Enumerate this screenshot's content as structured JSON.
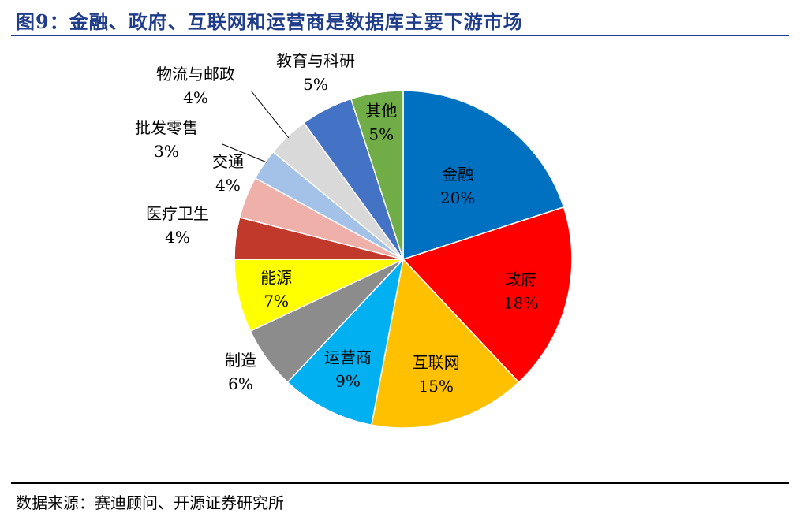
{
  "title": "图9：金融、政府、互联网和运营商是数据库主要下游市场",
  "source": "数据来源：赛迪顾问、开源证券研究所",
  "chart_data": {
    "type": "pie",
    "slices": [
      {
        "label": "金融",
        "value": 20,
        "value_label": "20%",
        "color": "#0070c0"
      },
      {
        "label": "政府",
        "value": 18,
        "value_label": "18%",
        "color": "#ff0000"
      },
      {
        "label": "互联网",
        "value": 15,
        "value_label": "15%",
        "color": "#ffc000"
      },
      {
        "label": "运营商",
        "value": 9,
        "value_label": "9%",
        "color": "#00b0f0"
      },
      {
        "label": "制造",
        "value": 6,
        "value_label": "6%",
        "color": "#8c8c8c"
      },
      {
        "label": "能源",
        "value": 7,
        "value_label": "7%",
        "color": "#ffff00"
      },
      {
        "label": "医疗卫生",
        "value": 4,
        "value_label": "4%",
        "color": "#c0392b"
      },
      {
        "label": "交通",
        "value": 4,
        "value_label": "4%",
        "color": "#f0b0aa"
      },
      {
        "label": "批发零售",
        "value": 3,
        "value_label": "3%",
        "color": "#a4c2e8"
      },
      {
        "label": "物流与邮政",
        "value": 4,
        "value_label": "4%",
        "color": "#d9d9d9"
      },
      {
        "label": "教育与科研",
        "value": 5,
        "value_label": "5%",
        "color": "#4472c4"
      },
      {
        "label": "其他",
        "value": 5,
        "value_label": "5%",
        "color": "#70ad47"
      }
    ]
  }
}
